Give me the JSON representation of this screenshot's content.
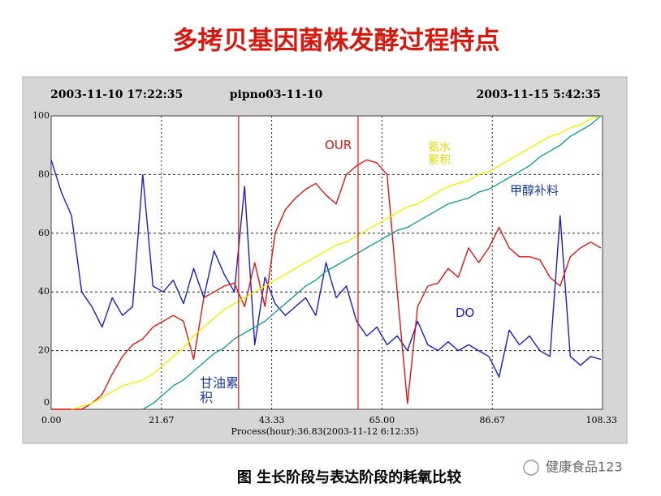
{
  "title": "多拷贝基因菌株发酵过程特点",
  "caption": "图   生长阶段与表达阶段的耗氧比较",
  "watermark": "健康食品123",
  "chart_data": {
    "type": "line",
    "header": {
      "left": "2003-11-10 17:22:35",
      "center": "pipno03-11-10",
      "right": "2003-11-15 5:42:35"
    },
    "x_label": "Process(hour):36.83(2003-11-12 6:12:35)",
    "x": [
      0,
      2,
      4,
      6,
      8,
      10,
      12,
      14,
      16,
      18,
      20,
      22,
      24,
      26,
      28,
      30,
      32,
      34,
      36,
      38,
      40,
      42,
      44,
      46,
      48,
      50,
      52,
      54,
      56,
      58,
      60,
      62,
      64,
      66,
      68,
      70,
      72,
      74,
      76,
      78,
      80,
      82,
      84,
      86,
      88,
      90,
      92,
      94,
      96,
      98,
      100,
      102,
      104,
      106,
      108
    ],
    "series": [
      {
        "name": "DO",
        "color": "#1c1cc4",
        "values": [
          85,
          74,
          66,
          40,
          35,
          28,
          38,
          32,
          35,
          80,
          42,
          40,
          44,
          36,
          48,
          38,
          54,
          46,
          40,
          76,
          22,
          45,
          36,
          32,
          35,
          38,
          32,
          50,
          38,
          42,
          30,
          25,
          28,
          22,
          25,
          20,
          30,
          22,
          20,
          23,
          20,
          22,
          20,
          18,
          11,
          27,
          22,
          25,
          20,
          18,
          66,
          18,
          15,
          18,
          17
        ]
      },
      {
        "name": "OUR",
        "color": "#e01414",
        "values": [
          0,
          0,
          0,
          0,
          2,
          5,
          12,
          18,
          22,
          24,
          28,
          30,
          32,
          30,
          17,
          38,
          40,
          42,
          43,
          35,
          50,
          35,
          60,
          68,
          72,
          75,
          77,
          73,
          70,
          80,
          83,
          85,
          84,
          80,
          40,
          2,
          35,
          42,
          43,
          48,
          45,
          55,
          50,
          55,
          62,
          55,
          52,
          52,
          51,
          45,
          42,
          52,
          55,
          57,
          55
        ]
      },
      {
        "name": "氨水累积",
        "color": "#f2f000",
        "values": [
          null,
          null,
          0,
          1,
          2,
          4,
          6,
          8,
          9,
          10,
          12,
          15,
          18,
          21,
          25,
          28,
          31,
          34,
          36,
          38,
          40,
          42,
          44,
          46,
          48,
          50,
          52,
          54,
          56,
          57,
          59,
          61,
          63,
          65,
          67,
          69,
          70,
          72,
          74,
          76,
          77,
          78,
          80,
          81,
          83,
          85,
          87,
          89,
          91,
          93,
          94,
          96,
          97,
          99,
          100
        ]
      },
      {
        "name": "甲醇补料",
        "color": "#1a9a9a",
        "values": [
          null,
          null,
          null,
          null,
          null,
          null,
          null,
          null,
          null,
          0,
          2,
          5,
          8,
          10,
          13,
          16,
          19,
          21,
          24,
          26,
          28,
          30,
          33,
          36,
          39,
          42,
          44,
          47,
          49,
          51,
          53,
          55,
          57,
          59,
          61,
          62,
          64,
          66,
          68,
          70,
          71,
          72,
          74,
          75,
          77,
          79,
          81,
          83,
          86,
          88,
          90,
          93,
          95,
          97,
          100
        ]
      }
    ],
    "annotation": "甘油累积",
    "vlines": [
      36.83,
      60.3
    ],
    "vline_color": "#e01414",
    "xlim": [
      0,
      108.33
    ],
    "xticks": [
      {
        "value": 0,
        "label": "0.00"
      },
      21.67,
      43.33,
      {
        "value": 65,
        "label": "65.00"
      },
      86.67,
      108.33
    ],
    "ylim": [
      0,
      100
    ],
    "yticks": [
      0,
      20,
      40,
      60,
      80,
      100
    ],
    "grid": true
  }
}
